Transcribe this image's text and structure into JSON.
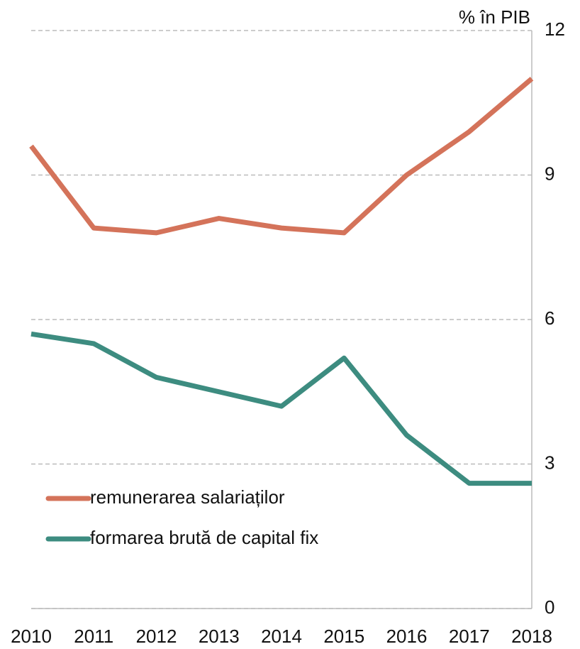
{
  "chart_data": {
    "type": "line",
    "y_axis_label": "% în PIB",
    "categories": [
      "2010",
      "2011",
      "2012",
      "2013",
      "2014",
      "2015",
      "2016",
      "2017",
      "2018"
    ],
    "series": [
      {
        "name": "remunerarea salariaților",
        "color": "#d4735a",
        "values": [
          9.6,
          7.9,
          7.8,
          8.1,
          7.9,
          7.8,
          9.0,
          9.9,
          11.0
        ]
      },
      {
        "name": "formarea brută de capital fix",
        "color": "#3d8c80",
        "values": [
          5.7,
          5.5,
          4.8,
          4.5,
          4.2,
          5.2,
          3.6,
          2.6,
          2.6
        ]
      }
    ],
    "ylim": [
      0,
      12
    ],
    "yticks": [
      0,
      3,
      6,
      9,
      12
    ],
    "grid": true
  }
}
